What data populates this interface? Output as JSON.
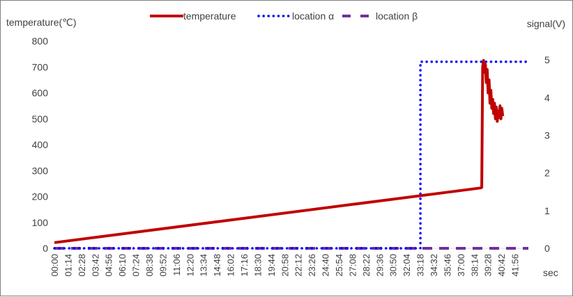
{
  "chart_data": {
    "type": "line",
    "y_left": {
      "label": "temperature(℃)",
      "range": [
        0,
        800
      ],
      "ticks": [
        0,
        100,
        200,
        300,
        400,
        500,
        600,
        700,
        800
      ]
    },
    "y_right": {
      "label": "signal(V)",
      "range": [
        0,
        5.5
      ],
      "ticks": [
        0,
        1,
        2,
        3,
        4,
        5
      ]
    },
    "x_axis": {
      "label": "sec",
      "range": [
        0,
        2590
      ],
      "tick_labels": [
        "00:00",
        "01:14",
        "02:28",
        "03:42",
        "04:56",
        "06:10",
        "07:24",
        "08:38",
        "09:52",
        "11:06",
        "12:20",
        "13:34",
        "14:48",
        "16:02",
        "17:16",
        "18:30",
        "19:44",
        "20:58",
        "22:12",
        "23:26",
        "24:40",
        "25:54",
        "27:08",
        "28:22",
        "29:36",
        "30:50",
        "32:04",
        "33:18",
        "34:32",
        "35:46",
        "37:00",
        "38:14",
        "39:28",
        "40:42",
        "41:56"
      ],
      "tick_interval_sec": 74
    },
    "grid": false,
    "legend_position": "top",
    "series": [
      {
        "name": "temperature",
        "axis": "left",
        "style": "solid",
        "color": "#c00000",
        "points": [
          [
            0,
            22
          ],
          [
            2330,
            233
          ],
          [
            2335,
            235
          ],
          [
            2340,
            700
          ],
          [
            2345,
            725
          ],
          [
            2350,
            680
          ],
          [
            2355,
            710
          ],
          [
            2360,
            640
          ],
          [
            2365,
            690
          ],
          [
            2370,
            600
          ],
          [
            2375,
            650
          ],
          [
            2380,
            560
          ],
          [
            2385,
            610
          ],
          [
            2390,
            540
          ],
          [
            2395,
            575
          ],
          [
            2400,
            520
          ],
          [
            2405,
            560
          ],
          [
            2410,
            500
          ],
          [
            2415,
            545
          ],
          [
            2420,
            490
          ],
          [
            2425,
            530
          ],
          [
            2430,
            505
          ],
          [
            2435,
            550
          ],
          [
            2440,
            500
          ],
          [
            2445,
            540
          ],
          [
            2450,
            510
          ]
        ]
      },
      {
        "name": "location α",
        "axis": "right",
        "style": "dotted",
        "color": "#0000ff",
        "points": [
          [
            0,
            0
          ],
          [
            2000,
            0
          ],
          [
            2000,
            4.95
          ],
          [
            2590,
            4.95
          ]
        ]
      },
      {
        "name": "location β",
        "axis": "right",
        "style": "dashed",
        "color": "#7030a0",
        "points": [
          [
            0,
            0
          ],
          [
            2590,
            0
          ]
        ]
      }
    ]
  }
}
